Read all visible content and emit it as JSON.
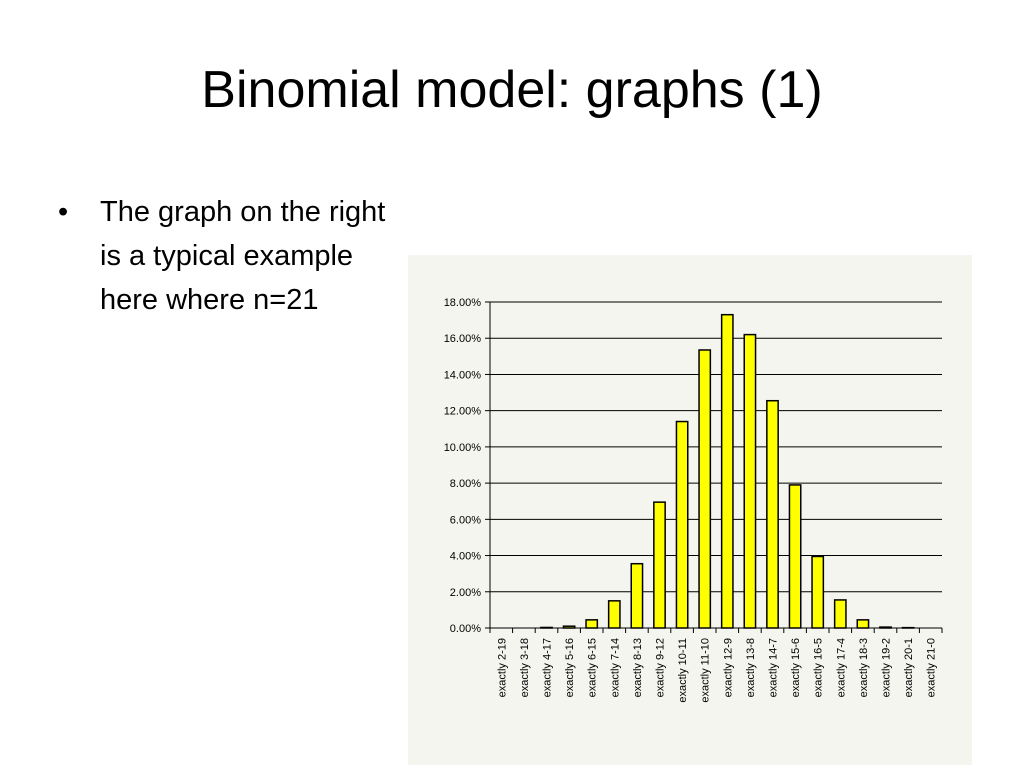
{
  "slide": {
    "title": "Binomial model:  graphs (1)",
    "bullets": [
      {
        "symbol": "•",
        "text": "The graph on the right\nis a typical example\nhere where n=21"
      }
    ]
  },
  "chart_data": {
    "type": "bar",
    "title": "",
    "xlabel": "",
    "ylabel": "",
    "ylim": [
      0,
      18
    ],
    "yticks": [
      "0.00%",
      "2.00%",
      "4.00%",
      "6.00%",
      "8.00%",
      "10.00%",
      "12.00%",
      "14.00%",
      "16.00%",
      "18.00%"
    ],
    "grid": true,
    "bar_color": "#ffff00",
    "bar_outline": "#000000",
    "background": "#f5f5ef",
    "categories": [
      "exactly 2-19",
      "exactly 3-18",
      "exactly 4-17",
      "exactly 5-16",
      "exactly 6-15",
      "exactly 7-14",
      "exactly 8-13",
      "exactly 9-12",
      "exactly 10-11",
      "exactly 11-10",
      "exactly 12-9",
      "exactly 13-8",
      "exactly 14-7",
      "exactly 15-6",
      "exactly 16-5",
      "exactly 17-4",
      "exactly 18-3",
      "exactly 19-2",
      "exactly 20-1",
      "exactly 21-0"
    ],
    "values": [
      0.0,
      0.0,
      0.03,
      0.1,
      0.45,
      1.5,
      3.55,
      6.95,
      11.4,
      15.35,
      17.3,
      16.2,
      12.55,
      7.9,
      3.95,
      1.55,
      0.45,
      0.05,
      0.02,
      0.0
    ]
  }
}
